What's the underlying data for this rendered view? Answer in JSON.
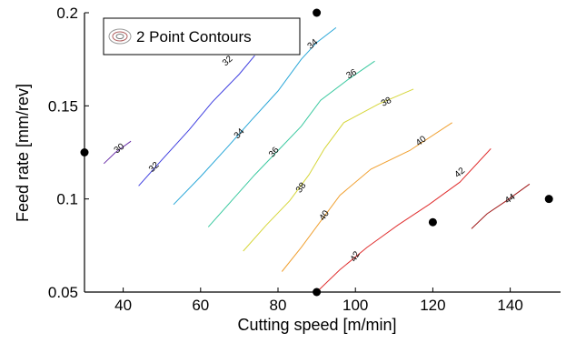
{
  "chart_data": {
    "type": "contour",
    "xlabel": "Cutting speed [m/min]",
    "ylabel": "Feed rate [mm/rev]",
    "xlim": [
      30,
      153
    ],
    "ylim": [
      0.05,
      0.2
    ],
    "x_ticks": [
      40,
      60,
      80,
      100,
      120,
      140
    ],
    "y_ticks": [
      0.05,
      0.1,
      0.15,
      0.2
    ],
    "x_tick_labels": [
      "40",
      "60",
      "80",
      "100",
      "120",
      "140"
    ],
    "y_tick_labels": [
      "0.05",
      "0.1",
      "0.15",
      "0.2"
    ],
    "grid": false,
    "legend": {
      "label": "2 Point Contours",
      "placement": "top-left"
    },
    "design_points": [
      {
        "x": 90,
        "y": 0.2
      },
      {
        "x": 30,
        "y": 0.125
      },
      {
        "x": 150,
        "y": 0.1
      },
      {
        "x": 120,
        "y": 0.0875
      },
      {
        "x": 90,
        "y": 0.05
      }
    ],
    "contours": [
      {
        "level": "30",
        "color": "#6a2fa8",
        "points": [
          [
            35,
            0.119
          ],
          [
            38,
            0.125
          ],
          [
            42,
            0.131
          ]
        ],
        "label_at": [
          39,
          0.127
        ],
        "label_angle": -38
      },
      {
        "level": "32",
        "color": "#3f3fe0",
        "points": [
          [
            44,
            0.107
          ],
          [
            50,
            0.121
          ],
          [
            57,
            0.137
          ],
          [
            63,
            0.152
          ],
          [
            70,
            0.167
          ],
          [
            74,
            0.177
          ]
        ],
        "label_at": [
          48,
          0.117
        ],
        "label_angle": -44
      },
      {
        "level": "32",
        "color": "#3f3fe0",
        "points": [
          [
            74,
            0.177
          ]
        ],
        "label_at": [
          67,
          0.174
        ],
        "label_angle": -42
      },
      {
        "level": "34",
        "color": "#2aa7d8",
        "points": [
          [
            53,
            0.097
          ],
          [
            60,
            0.112
          ],
          [
            67,
            0.128
          ],
          [
            73,
            0.142
          ],
          [
            80,
            0.158
          ],
          [
            86,
            0.175
          ],
          [
            90,
            0.184
          ],
          [
            95,
            0.192
          ]
        ],
        "label_at": [
          70,
          0.135
        ],
        "label_angle": -46
      },
      {
        "level": "34",
        "color": "#2aa7d8",
        "points": [
          [
            95,
            0.192
          ]
        ],
        "label_at": [
          89,
          0.183
        ],
        "label_angle": -40
      },
      {
        "level": "36",
        "color": "#3bc9a0",
        "points": [
          [
            62,
            0.085
          ],
          [
            68,
            0.099
          ],
          [
            74,
            0.113
          ],
          [
            80,
            0.126
          ],
          [
            86,
            0.139
          ],
          [
            91,
            0.153
          ],
          [
            98,
            0.164
          ],
          [
            105,
            0.174
          ]
        ],
        "label_at": [
          79,
          0.125
        ],
        "label_angle": -50
      },
      {
        "level": "36",
        "color": "#3bc9a0",
        "points": [
          [
            105,
            0.174
          ]
        ],
        "label_at": [
          99,
          0.167
        ],
        "label_angle": -30
      },
      {
        "level": "38",
        "color": "#d6d63a",
        "points": [
          [
            71,
            0.072
          ],
          [
            77,
            0.086
          ],
          [
            83,
            0.099
          ],
          [
            88,
            0.113
          ],
          [
            92,
            0.127
          ],
          [
            97,
            0.141
          ],
          [
            106,
            0.151
          ],
          [
            115,
            0.159
          ]
        ],
        "label_at": [
          86,
          0.106
        ],
        "label_angle": -54
      },
      {
        "level": "38",
        "color": "#d6d63a",
        "points": [
          [
            115,
            0.159
          ]
        ],
        "label_at": [
          108,
          0.152
        ],
        "label_angle": -28
      },
      {
        "level": "40",
        "color": "#f0a030",
        "points": [
          [
            81,
            0.061
          ],
          [
            86,
            0.074
          ],
          [
            91,
            0.088
          ],
          [
            96,
            0.102
          ],
          [
            104,
            0.116
          ],
          [
            114,
            0.126
          ],
          [
            125,
            0.141
          ]
        ],
        "label_at": [
          92,
          0.091
        ],
        "label_angle": -55
      },
      {
        "level": "40",
        "color": "#f0a030",
        "points": [
          [
            125,
            0.141
          ]
        ],
        "label_at": [
          117,
          0.131
        ],
        "label_angle": -38
      },
      {
        "level": "42",
        "color": "#e03030",
        "points": [
          [
            90,
            0.05
          ],
          [
            96,
            0.062
          ],
          [
            103,
            0.074
          ],
          [
            111,
            0.086
          ],
          [
            119,
            0.097
          ],
          [
            127,
            0.109
          ],
          [
            135,
            0.127
          ]
        ],
        "label_at": [
          100,
          0.069
        ],
        "label_angle": -60
      },
      {
        "level": "42",
        "color": "#e03030",
        "points": [
          [
            135,
            0.127
          ]
        ],
        "label_at": [
          127,
          0.114
        ],
        "label_angle": -40
      },
      {
        "level": "44",
        "color": "#a01818",
        "points": [
          [
            130,
            0.084
          ],
          [
            134,
            0.092
          ],
          [
            139,
            0.099
          ],
          [
            145,
            0.108
          ]
        ],
        "label_at": [
          140,
          0.1
        ],
        "label_angle": -34
      }
    ]
  }
}
